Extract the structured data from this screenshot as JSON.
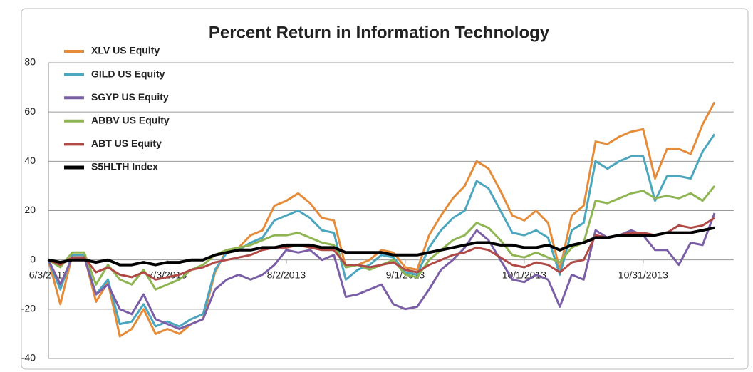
{
  "chart_data": {
    "type": "line",
    "title": "Percent Return in Information Technology",
    "categories": [
      "6/3/2013",
      null,
      null,
      null,
      null,
      null,
      null,
      null,
      null,
      null,
      "7/3/2013",
      null,
      null,
      null,
      null,
      null,
      null,
      null,
      null,
      null,
      "8/2/2013",
      null,
      null,
      null,
      null,
      null,
      null,
      null,
      null,
      null,
      "9/1/2013",
      null,
      null,
      null,
      null,
      null,
      null,
      null,
      null,
      null,
      "10/1/2013",
      null,
      null,
      null,
      null,
      null,
      null,
      null,
      null,
      null,
      "10/31/2013",
      null,
      null,
      null,
      null,
      null,
      null
    ],
    "series": [
      {
        "name": "XLV US Equity",
        "color": "#e58c3a",
        "values": [
          0,
          -18,
          2,
          2,
          -17,
          -9,
          -31,
          -28,
          -20,
          -30,
          -28,
          -30,
          -26,
          -24,
          -5,
          4,
          5,
          10,
          12,
          22,
          24,
          27,
          23,
          17,
          16,
          -3,
          -2,
          0,
          4,
          3,
          -3,
          -4,
          10,
          18,
          25,
          30,
          40,
          37,
          28,
          18,
          16,
          20,
          15,
          -4,
          18,
          22,
          48,
          47,
          50,
          52,
          53,
          33,
          45,
          45,
          43,
          55,
          64
        ]
      },
      {
        "name": "GILD US Equity",
        "color": "#4ba6be",
        "values": [
          0,
          -12,
          2,
          2,
          -14,
          -8,
          -26,
          -25,
          -18,
          -27,
          -25,
          -27,
          -24,
          -22,
          -4,
          3,
          4,
          7,
          9,
          16,
          18,
          20,
          17,
          12,
          11,
          -8,
          -4,
          -2,
          2,
          1,
          -5,
          -6,
          5,
          12,
          17,
          20,
          32,
          29,
          20,
          11,
          10,
          12,
          9,
          -6,
          12,
          15,
          40,
          37,
          40,
          42,
          42,
          24,
          34,
          34,
          33,
          44,
          51
        ]
      },
      {
        "name": "SGYP US Equity",
        "color": "#7b5fa6",
        "values": [
          0,
          -10,
          1,
          1,
          -14,
          -10,
          -20,
          -22,
          -14,
          -24,
          -26,
          -28,
          -26,
          -24,
          -12,
          -8,
          -6,
          -8,
          -6,
          -2,
          4,
          3,
          4,
          0,
          2,
          -15,
          -14,
          -12,
          -10,
          -18,
          -20,
          -19,
          -12,
          -4,
          0,
          5,
          12,
          8,
          0,
          -8,
          -9,
          -6,
          -8,
          -19,
          -6,
          -8,
          12,
          9,
          10,
          12,
          10,
          4,
          4,
          -2,
          7,
          6,
          19
        ]
      },
      {
        "name": "ABBV US Equity",
        "color": "#8fb553",
        "values": [
          0,
          -3,
          3,
          3,
          -10,
          -2,
          -8,
          -10,
          -4,
          -12,
          -10,
          -8,
          -4,
          -2,
          2,
          4,
          5,
          6,
          8,
          10,
          10,
          11,
          9,
          7,
          6,
          -3,
          -2,
          -4,
          -2,
          0,
          -6,
          -7,
          0,
          4,
          8,
          10,
          15,
          13,
          8,
          2,
          1,
          3,
          1,
          -1,
          5,
          7,
          24,
          23,
          25,
          27,
          28,
          25,
          26,
          25,
          27,
          24,
          30
        ]
      },
      {
        "name": "ABT US Equity",
        "color": "#b04a46",
        "values": [
          0,
          -2,
          1,
          1,
          -5,
          -3,
          -6,
          -7,
          -5,
          -8,
          -7,
          -6,
          -4,
          -3,
          -1,
          0,
          1,
          2,
          4,
          5,
          5,
          6,
          5,
          4,
          4,
          -2,
          -2,
          -3,
          -2,
          -1,
          -4,
          -5,
          -2,
          0,
          2,
          3,
          5,
          4,
          1,
          -2,
          -3,
          -1,
          -2,
          -5,
          -1,
          0,
          10,
          9,
          10,
          11,
          11,
          10,
          11,
          14,
          13,
          14,
          17
        ]
      },
      {
        "name": "S5HLTH Index",
        "color": "#000000",
        "values": [
          0,
          -1,
          0,
          0,
          -1,
          0,
          -2,
          -2,
          -1,
          -2,
          -1,
          -1,
          0,
          0,
          2,
          3,
          4,
          4,
          5,
          5,
          6,
          6,
          6,
          5,
          5,
          3,
          3,
          3,
          3,
          2,
          2,
          2,
          3,
          4,
          5,
          6,
          7,
          7,
          6,
          6,
          5,
          5,
          6,
          4,
          6,
          7,
          9,
          9,
          10,
          10,
          10,
          10,
          11,
          11,
          11,
          12,
          13
        ]
      }
    ],
    "ylim": [
      -40,
      80
    ],
    "yticks": [
      -40,
      -20,
      0,
      20,
      40,
      60,
      80
    ],
    "grid": true,
    "legend": "upper left"
  }
}
